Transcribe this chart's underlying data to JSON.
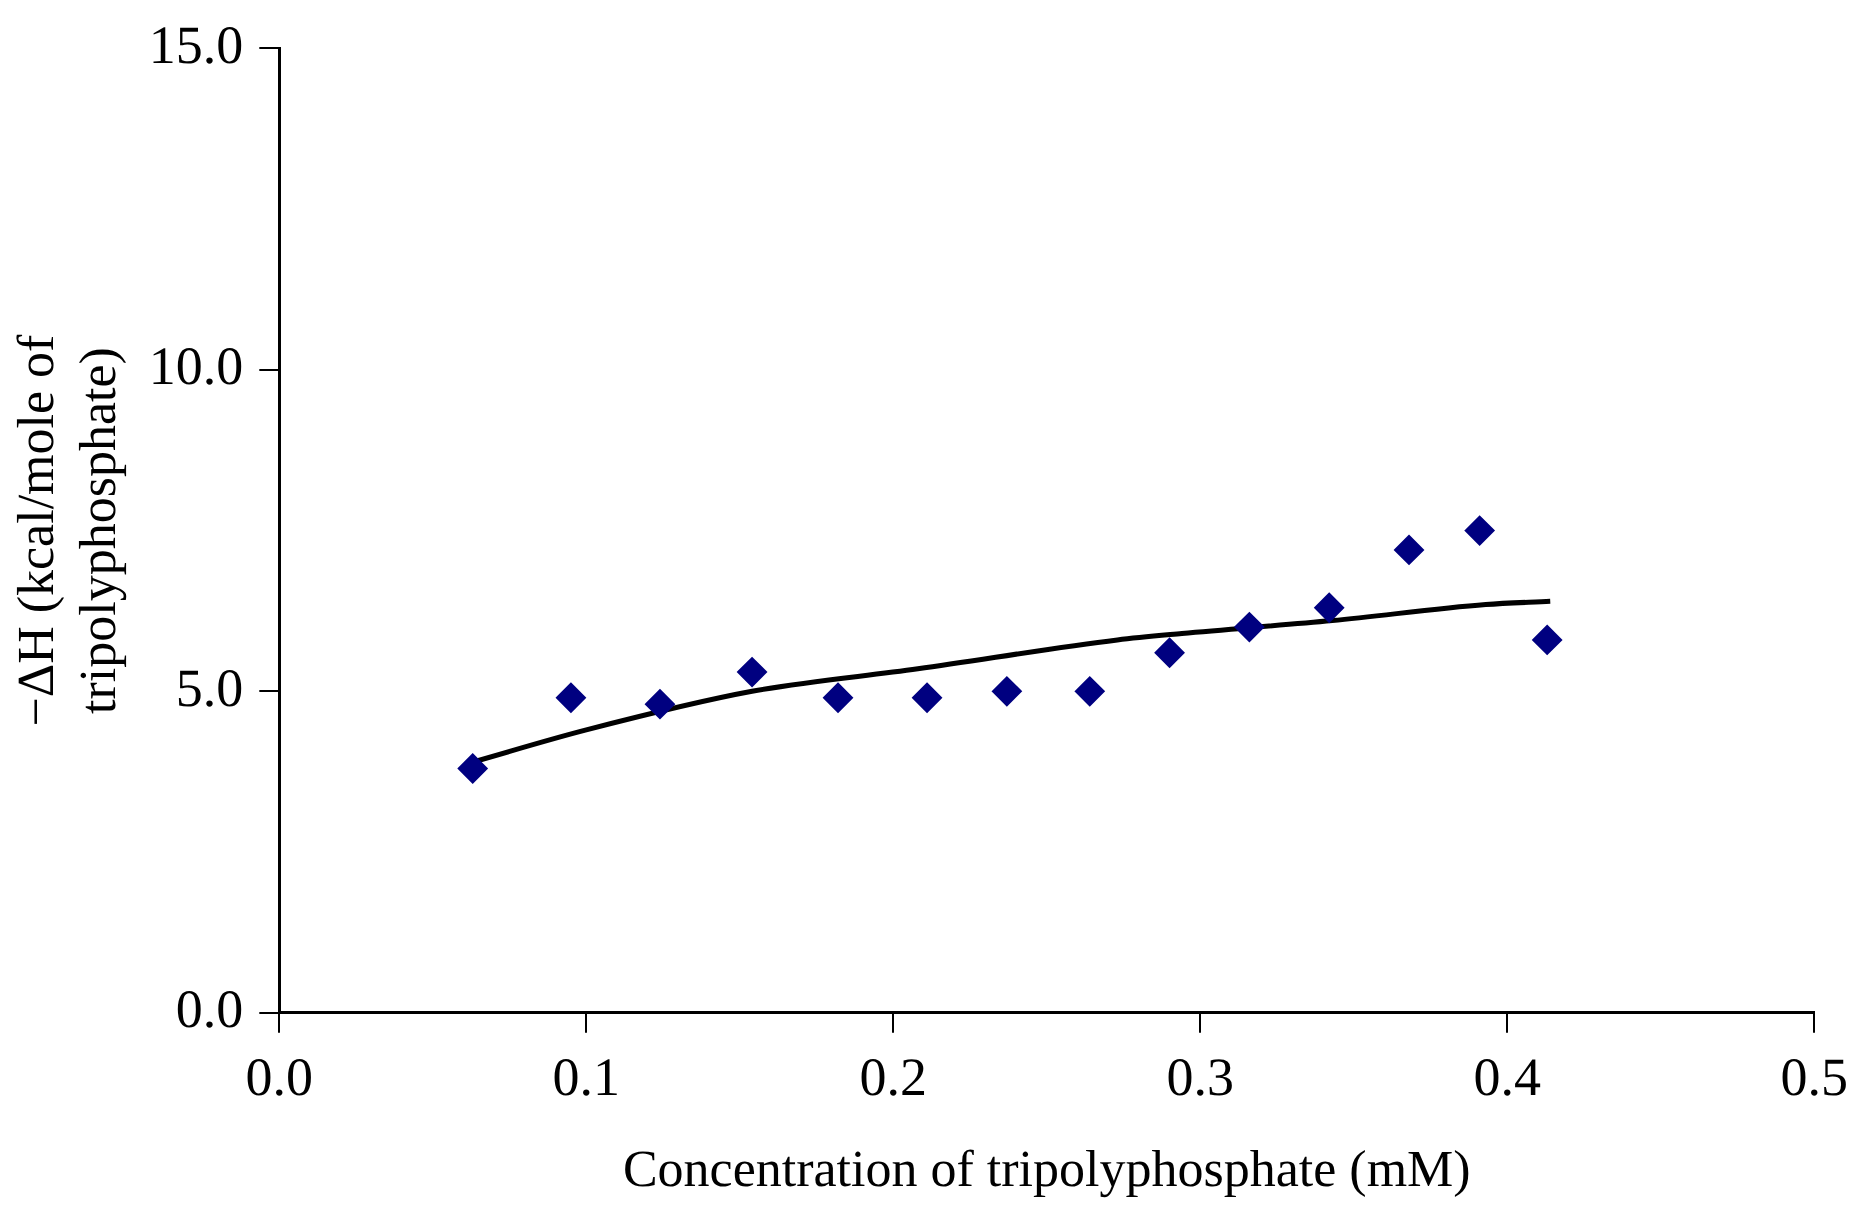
{
  "chart_data": {
    "type": "scatter",
    "xlabel": "Concentration of tripolyphosphate (mM)",
    "ylabel": "−ΔH (kcal/mole of tripolyphosphate)",
    "xlim": [
      0,
      0.5
    ],
    "xticks": [
      {
        "value": 0,
        "label": "0.0"
      },
      {
        "value": 0.1,
        "label": "0.1"
      },
      {
        "value": 0.2,
        "label": "0.2"
      },
      {
        "value": 0.3,
        "label": "0.3"
      },
      {
        "value": 0.4,
        "label": "0.4"
      },
      {
        "value": 0.5,
        "label": "0.5"
      }
    ],
    "ylim": [
      0,
      15
    ],
    "yticks": [
      {
        "value": 0,
        "label": "0.0"
      },
      {
        "value": 5,
        "label": "5.0"
      },
      {
        "value": 10,
        "label": "10.0"
      },
      {
        "value": 15,
        "label": "15.0"
      }
    ],
    "grid": false,
    "legend": false,
    "series": [
      {
        "color": "#000080",
        "marker": "diamond",
        "x": [
          0.063,
          0.095,
          0.124,
          0.154,
          0.182,
          0.211,
          0.237,
          0.264,
          0.29,
          0.316,
          0.342,
          0.368,
          0.391,
          0.413
        ],
        "values": [
          3.8,
          4.9,
          4.8,
          5.3,
          4.9,
          4.9,
          5.0,
          5.0,
          5.6,
          6.0,
          6.3,
          7.2,
          7.5,
          5.8
        ]
      },
      {
        "type": "line",
        "color": "#000000",
        "marker": "none",
        "line_style": "solid",
        "x": [
          0.063,
          0.1,
          0.154,
          0.208,
          0.273,
          0.294,
          0.343,
          0.393,
          0.414
        ],
        "values": [
          3.9,
          4.4,
          5.0,
          5.35,
          5.8,
          5.9,
          6.1,
          6.35,
          6.4
        ]
      }
    ]
  }
}
